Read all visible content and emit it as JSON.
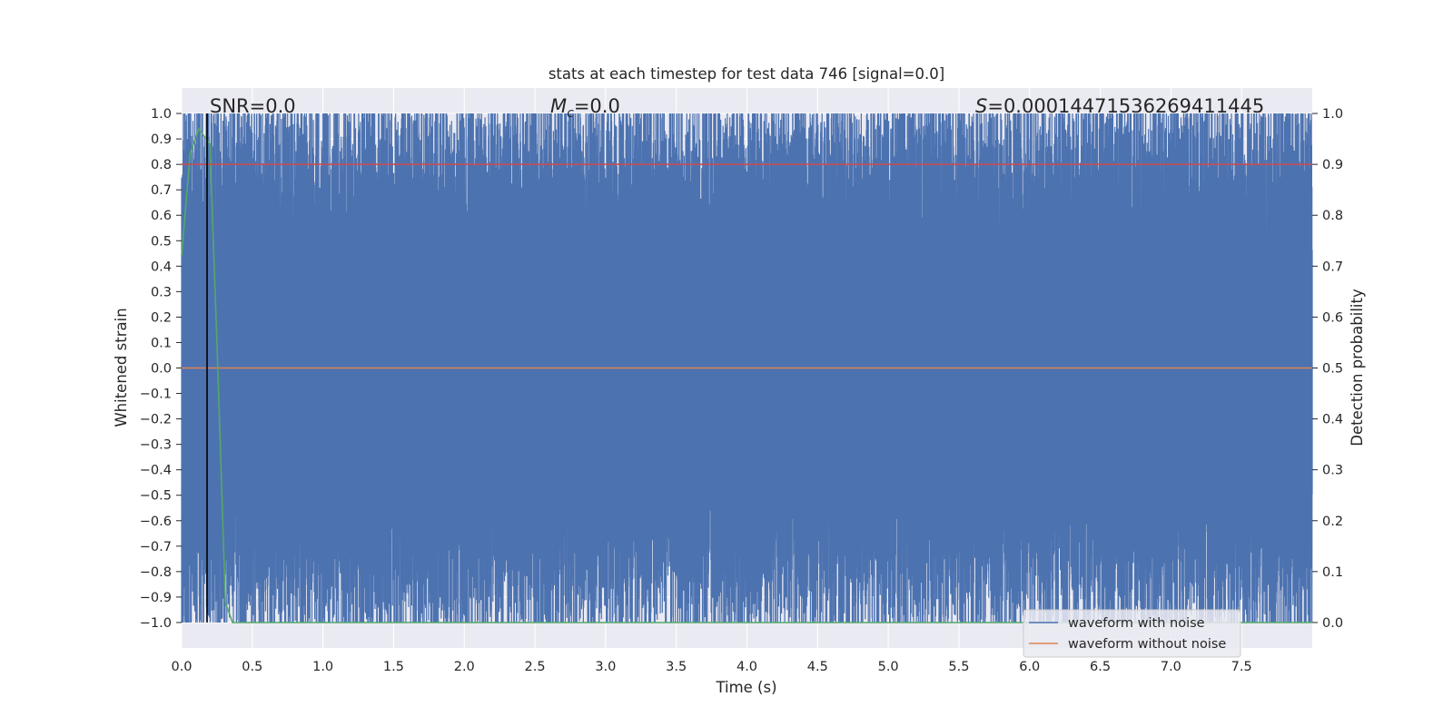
{
  "chart_data": {
    "type": "line",
    "title": "stats at each timestep for test data 746 [signal=0.0]",
    "xlabel": "Time (s)",
    "ylabel": "Whitened strain",
    "ylabel_right": "Detection probability",
    "xlim": [
      0.0,
      8.0
    ],
    "ylim": [
      -1.1,
      1.1
    ],
    "ylim_right": [
      -0.05,
      1.05
    ],
    "x_ticks": [
      "0.0",
      "0.5",
      "1.0",
      "1.5",
      "2.0",
      "2.5",
      "3.0",
      "3.5",
      "4.0",
      "4.5",
      "5.0",
      "5.5",
      "6.0",
      "6.5",
      "7.0",
      "7.5"
    ],
    "x_tick_values": [
      0.0,
      0.5,
      1.0,
      1.5,
      2.0,
      2.5,
      3.0,
      3.5,
      4.0,
      4.5,
      5.0,
      5.5,
      6.0,
      6.5,
      7.0,
      7.5
    ],
    "y_ticks": [
      "1.0",
      "0.9",
      "0.8",
      "0.7",
      "0.6",
      "0.5",
      "0.4",
      "0.3",
      "0.2",
      "0.1",
      "0.0",
      "−0.1",
      "−0.2",
      "−0.3",
      "−0.4",
      "−0.5",
      "−0.6",
      "−0.7",
      "−0.8",
      "−0.9",
      "−1.0"
    ],
    "y_tick_values": [
      1.0,
      0.9,
      0.8,
      0.7,
      0.6,
      0.5,
      0.4,
      0.3,
      0.2,
      0.1,
      0.0,
      -0.1,
      -0.2,
      -0.3,
      -0.4,
      -0.5,
      -0.6,
      -0.7,
      -0.8,
      -0.9,
      -1.0
    ],
    "y_ticks_right": [
      "1.0",
      "0.9",
      "0.8",
      "0.7",
      "0.6",
      "0.5",
      "0.4",
      "0.3",
      "0.2",
      "0.1",
      "0.0"
    ],
    "y_tick_values_right": [
      1.0,
      0.9,
      0.8,
      0.7,
      0.6,
      0.5,
      0.4,
      0.3,
      0.2,
      0.1,
      0.0
    ],
    "grid": true,
    "legend_position": "lower-right",
    "annotations": {
      "snr": "SNR=0.0",
      "mc_symbol": "M",
      "mc_sub": "c",
      "mc_value": "=0.0",
      "s_symbol": "S",
      "s_value": "=0.00014471536269411445"
    },
    "series": [
      {
        "name": "waveform with noise",
        "color": "#4c72b0",
        "kind": "dense-noise",
        "x_range": [
          0.0,
          8.0
        ],
        "amplitude": [
          -1.0,
          1.0
        ]
      },
      {
        "name": "waveform without noise",
        "color": "#dd8452",
        "x": [
          0.0,
          8.0
        ],
        "y": [
          0.0,
          0.0
        ]
      },
      {
        "color": "#55a868",
        "axis": "right",
        "x": [
          0.0,
          0.06,
          0.12,
          0.2,
          0.25,
          0.31,
          0.36,
          8.0
        ],
        "y": [
          0.72,
          0.92,
          0.97,
          0.94,
          0.55,
          0.04,
          0.0,
          0.0
        ]
      },
      {
        "color": "#c44e52",
        "axis": "right",
        "kind": "threshold",
        "x": [
          0.0,
          8.0
        ],
        "y": [
          0.9,
          0.9
        ]
      }
    ],
    "markers": [
      {
        "color": "#000000",
        "x": 0.18,
        "y_range": [
          -1.0,
          1.0
        ]
      }
    ]
  }
}
